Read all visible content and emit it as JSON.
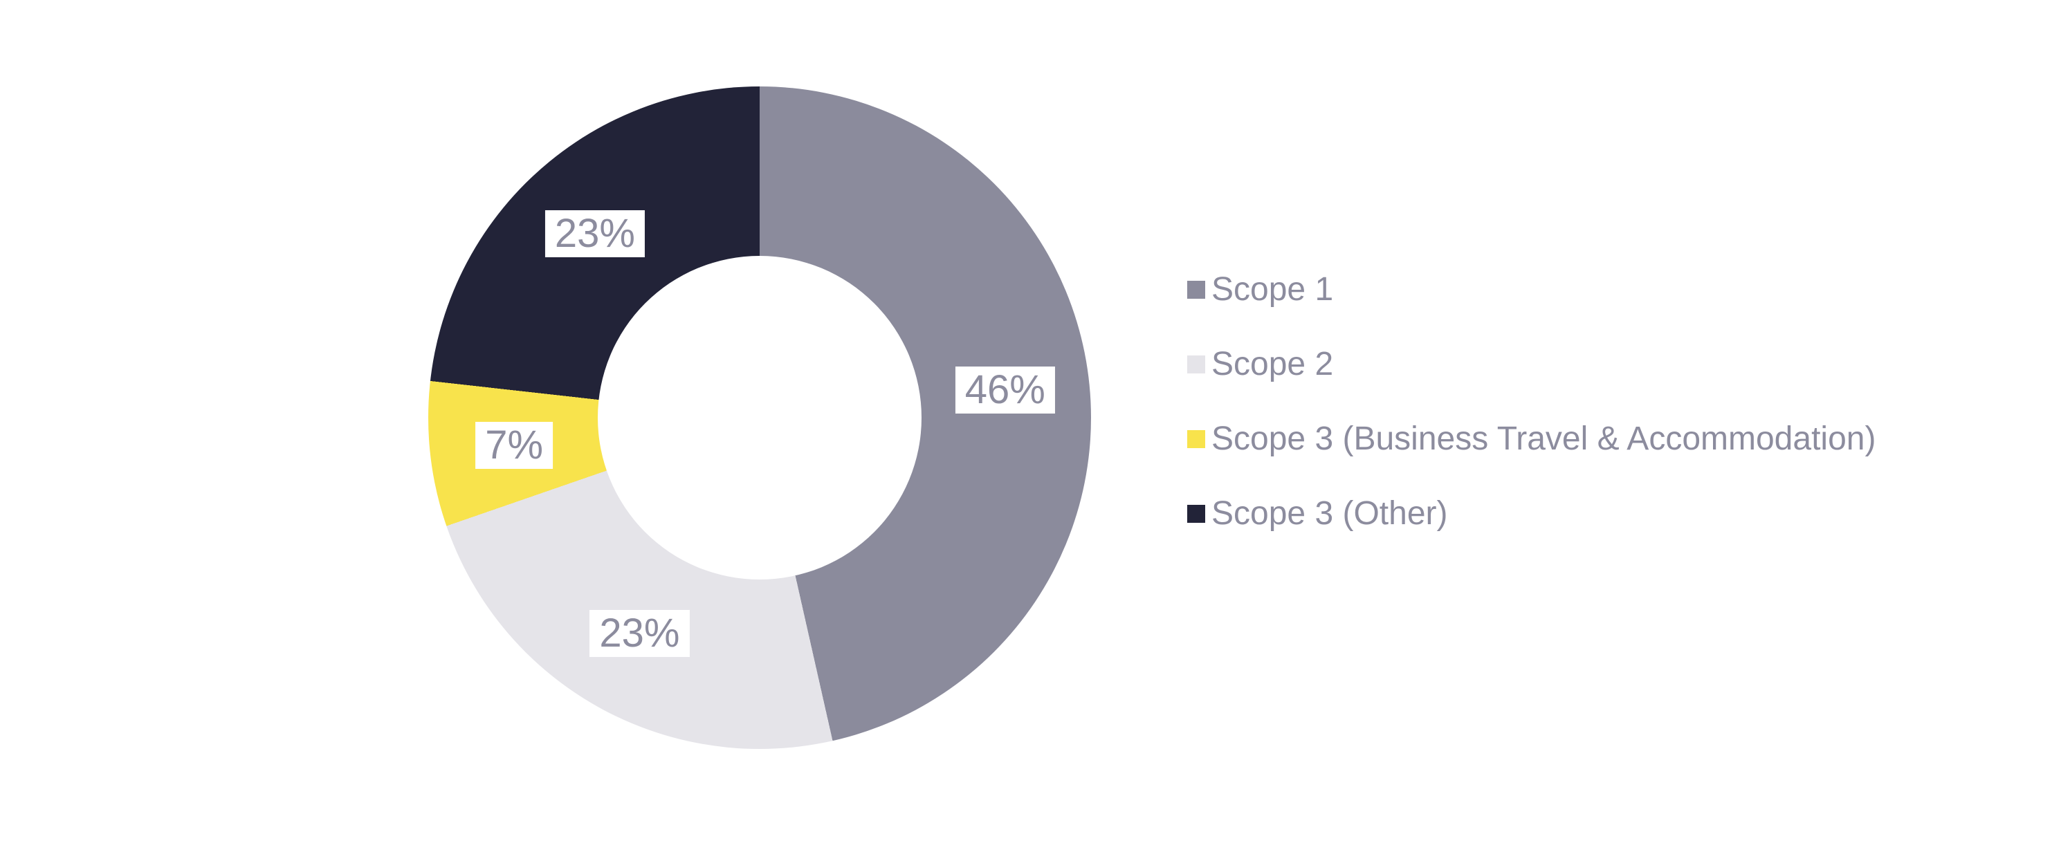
{
  "chart_data": {
    "type": "pie",
    "variant": "donut",
    "direction": "clockwise",
    "start_angle_deg": 0,
    "donut_hole_ratio": 0.49,
    "legend_position": "right",
    "grid": false,
    "background_color": "#ffffff",
    "label_text_color": "#8c8c9e",
    "label_bg_color": "#ffffff",
    "segments": [
      {
        "label": "Scope 1",
        "value": 46,
        "display": "46%",
        "color": "#8b8b9c"
      },
      {
        "label": "Scope 2",
        "value": 23,
        "display": "23%",
        "color": "#e5e4e9"
      },
      {
        "label": "Scope 3 (Business Travel & Accommodation)",
        "value": 7,
        "display": "7%",
        "color": "#f8e34c"
      },
      {
        "label": "Scope 3 (Other)",
        "value": 23,
        "display": "23%",
        "color": "#222338"
      }
    ]
  }
}
